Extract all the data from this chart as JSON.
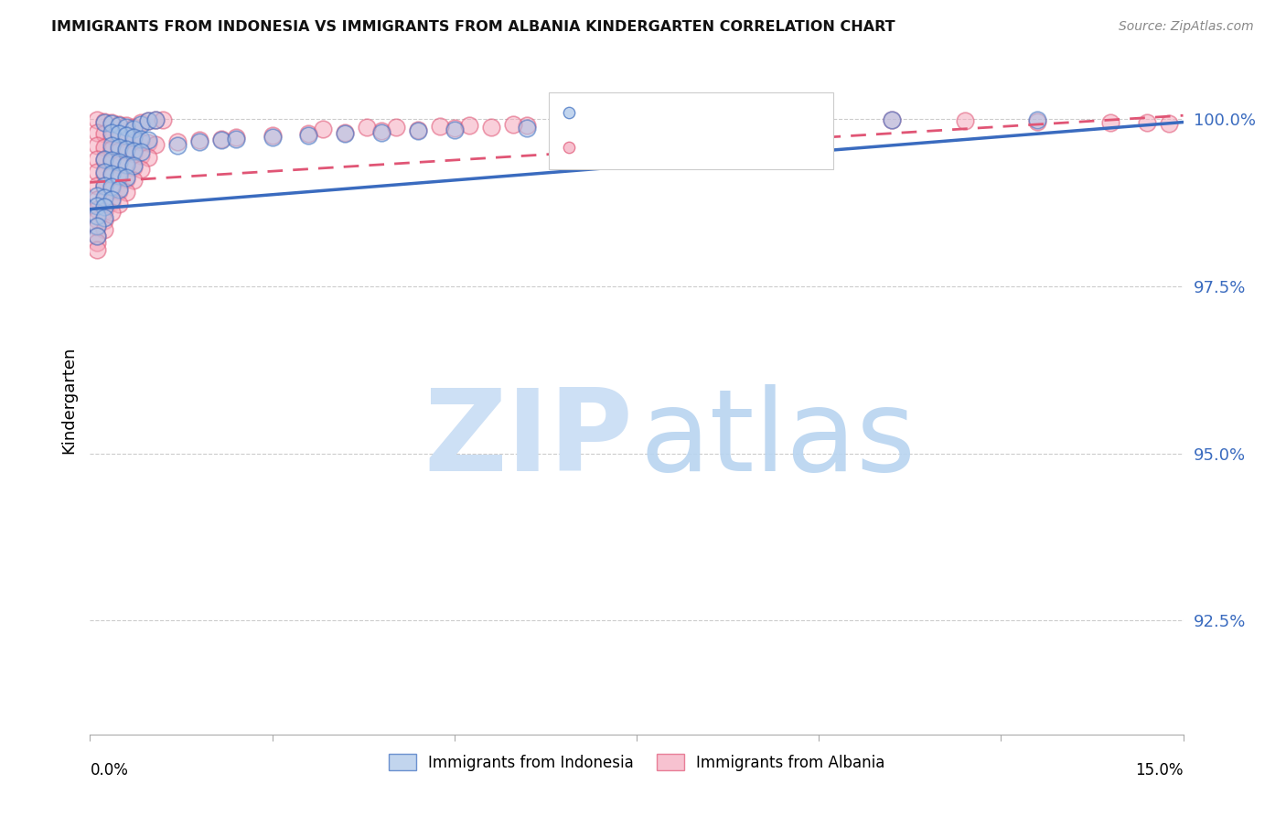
{
  "title": "IMMIGRANTS FROM INDONESIA VS IMMIGRANTS FROM ALBANIA KINDERGARTEN CORRELATION CHART",
  "source": "Source: ZipAtlas.com",
  "ylabel": "Kindergarten",
  "ytick_labels": [
    "100.0%",
    "97.5%",
    "95.0%",
    "92.5%"
  ],
  "ytick_values": [
    1.0,
    0.975,
    0.95,
    0.925
  ],
  "xlim": [
    0.0,
    0.15
  ],
  "ylim": [
    0.908,
    1.008
  ],
  "color_indonesia": "#a8c4e8",
  "color_albania": "#f5a8bc",
  "color_line_indonesia": "#3a6bbf",
  "color_line_albania": "#e05575",
  "watermark_zip_color": "#cde0f5",
  "watermark_atlas_color": "#b8d4f0",
  "indo_line_x": [
    0.0,
    0.15
  ],
  "indo_line_y": [
    0.9865,
    0.9995
  ],
  "alba_line_x": [
    0.0,
    0.15
  ],
  "alba_line_y": [
    0.9905,
    1.0005
  ],
  "indo_scatter_x": [
    0.002,
    0.003,
    0.004,
    0.005,
    0.006,
    0.007,
    0.008,
    0.009,
    0.003,
    0.004,
    0.005,
    0.006,
    0.007,
    0.008,
    0.003,
    0.004,
    0.005,
    0.006,
    0.007,
    0.002,
    0.003,
    0.004,
    0.005,
    0.006,
    0.002,
    0.003,
    0.004,
    0.005,
    0.002,
    0.003,
    0.004,
    0.001,
    0.002,
    0.003,
    0.001,
    0.002,
    0.001,
    0.002,
    0.001,
    0.001,
    0.012,
    0.015,
    0.018,
    0.02,
    0.025,
    0.03,
    0.035,
    0.04,
    0.045,
    0.05,
    0.06,
    0.065,
    0.07,
    0.08,
    0.095,
    0.1,
    0.11,
    0.13
  ],
  "indo_scatter_y": [
    0.9995,
    0.9993,
    0.999,
    0.9988,
    0.9985,
    0.9992,
    0.9997,
    0.9999,
    0.998,
    0.9978,
    0.9975,
    0.9973,
    0.997,
    0.9968,
    0.996,
    0.9958,
    0.9955,
    0.9952,
    0.995,
    0.994,
    0.9938,
    0.9935,
    0.9932,
    0.993,
    0.992,
    0.9918,
    0.9915,
    0.9912,
    0.99,
    0.9898,
    0.9895,
    0.9885,
    0.9882,
    0.988,
    0.987,
    0.9868,
    0.9855,
    0.9852,
    0.984,
    0.9825,
    0.996,
    0.9965,
    0.9968,
    0.997,
    0.9972,
    0.9975,
    0.9978,
    0.998,
    0.9982,
    0.9984,
    0.9986,
    0.9988,
    0.999,
    0.9992,
    0.9994,
    0.9996,
    0.9998,
    0.9999
  ],
  "alba_scatter_x": [
    0.001,
    0.002,
    0.003,
    0.004,
    0.005,
    0.006,
    0.007,
    0.008,
    0.009,
    0.01,
    0.001,
    0.002,
    0.003,
    0.004,
    0.005,
    0.006,
    0.007,
    0.008,
    0.009,
    0.001,
    0.002,
    0.003,
    0.004,
    0.005,
    0.006,
    0.007,
    0.008,
    0.001,
    0.002,
    0.003,
    0.004,
    0.005,
    0.006,
    0.007,
    0.001,
    0.002,
    0.003,
    0.004,
    0.005,
    0.006,
    0.001,
    0.002,
    0.003,
    0.004,
    0.005,
    0.001,
    0.002,
    0.003,
    0.004,
    0.001,
    0.002,
    0.003,
    0.001,
    0.002,
    0.001,
    0.002,
    0.001,
    0.001,
    0.001,
    0.012,
    0.015,
    0.018,
    0.02,
    0.025,
    0.03,
    0.035,
    0.04,
    0.045,
    0.05,
    0.055,
    0.06,
    0.07,
    0.075,
    0.08,
    0.085,
    0.09,
    0.095,
    0.1,
    0.11,
    0.12,
    0.13,
    0.14,
    0.145,
    0.148,
    0.032,
    0.038,
    0.042,
    0.048,
    0.052,
    0.058,
    0.065,
    0.072,
    0.078
  ],
  "alba_scatter_y": [
    0.9998,
    0.9996,
    0.9994,
    0.9992,
    0.999,
    0.9988,
    0.9995,
    0.9997,
    0.9999,
    0.9998,
    0.998,
    0.9978,
    0.9975,
    0.9972,
    0.997,
    0.9968,
    0.9966,
    0.9964,
    0.9962,
    0.996,
    0.9958,
    0.9955,
    0.9952,
    0.995,
    0.9948,
    0.9945,
    0.9942,
    0.994,
    0.9938,
    0.9935,
    0.9932,
    0.993,
    0.9928,
    0.9925,
    0.992,
    0.9918,
    0.9915,
    0.9912,
    0.991,
    0.9908,
    0.99,
    0.9898,
    0.9895,
    0.9892,
    0.989,
    0.988,
    0.9878,
    0.9875,
    0.9872,
    0.9865,
    0.9862,
    0.986,
    0.985,
    0.9848,
    0.9838,
    0.9835,
    0.9825,
    0.9815,
    0.9805,
    0.9965,
    0.9968,
    0.997,
    0.9972,
    0.9975,
    0.9978,
    0.998,
    0.9982,
    0.9984,
    0.9986,
    0.9988,
    0.999,
    0.9992,
    0.9994,
    0.9995,
    0.9996,
    0.9997,
    0.9998,
    0.9999,
    0.9998,
    0.9997,
    0.9996,
    0.9995,
    0.9994,
    0.9993,
    0.9985,
    0.9987,
    0.9988,
    0.9989,
    0.999,
    0.9991,
    0.9992,
    0.9993,
    0.9994
  ]
}
